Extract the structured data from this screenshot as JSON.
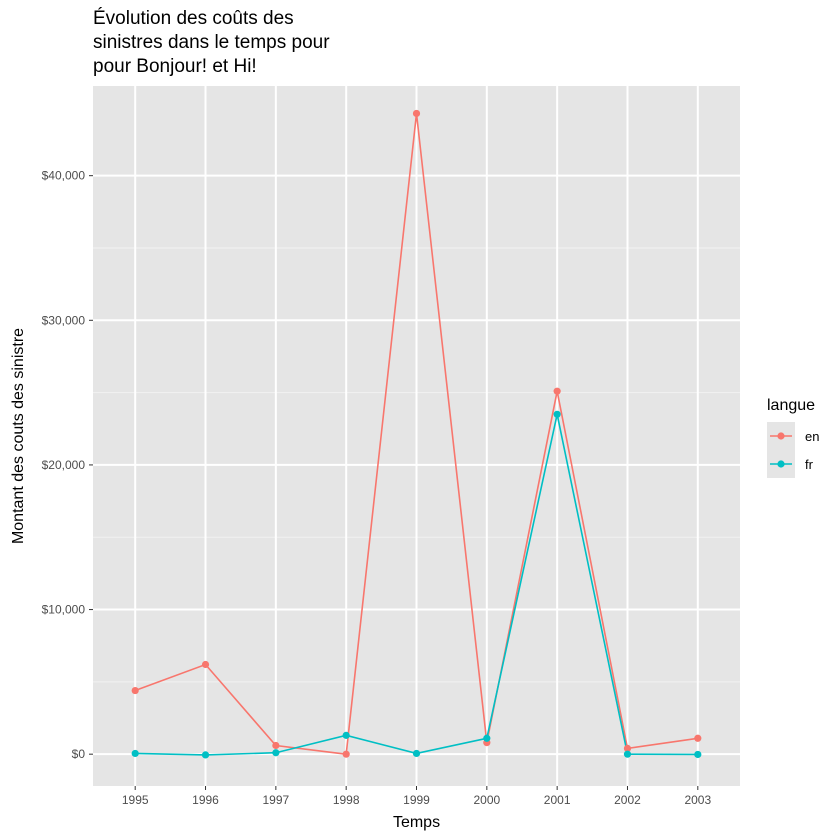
{
  "chart_data": {
    "type": "line",
    "title_lines": [
      "Évolution des coûts des",
      "sinistres dans le temps pour",
      "pour Bonjour! et Hi!"
    ],
    "xlabel": "Temps",
    "ylabel": "Montant des couts des sinistre",
    "x": [
      "1995",
      "1996",
      "1997",
      "1998",
      "1999",
      "2000",
      "2001",
      "2002",
      "2003"
    ],
    "ylim": [
      -2200,
      46200
    ],
    "y_ticks": [
      0,
      10000,
      20000,
      30000,
      40000
    ],
    "y_tick_labels": [
      "$0",
      "$10,000",
      "$20,000",
      "$30,000",
      "$40,000"
    ],
    "grid": true,
    "panel_background": "#e5e5e5",
    "legend": {
      "title": "langue",
      "placement": "right"
    },
    "series": [
      {
        "name": "en",
        "color": "#f8766d",
        "values": [
          4400,
          6200,
          600,
          0,
          44300,
          800,
          25100,
          400,
          1100
        ]
      },
      {
        "name": "fr",
        "color": "#00bfc4",
        "values": [
          50,
          -50,
          100,
          1300,
          50,
          1100,
          23500,
          0,
          -20
        ]
      }
    ]
  }
}
